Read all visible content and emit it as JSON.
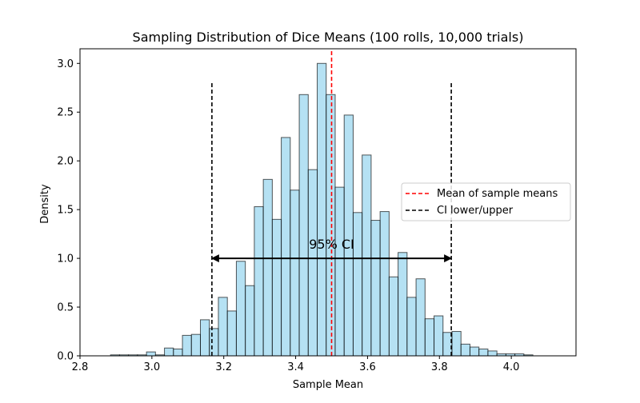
{
  "chart_data": {
    "type": "bar",
    "title": "Sampling Distribution of Dice Means (100 rolls, 10,000 trials)",
    "xlabel": "Sample Mean",
    "ylabel": "Density",
    "xlim": [
      2.8,
      4.18
    ],
    "ylim": [
      0,
      3.15
    ],
    "xticks": [
      "2.8",
      "3.0",
      "3.2",
      "3.4",
      "3.6",
      "3.8",
      "4.0"
    ],
    "yticks": [
      "0.0",
      "0.5",
      "1.0",
      "1.5",
      "2.0",
      "2.5",
      "3.0"
    ],
    "histogram": {
      "bin_start": 2.885,
      "bin_width": 0.025,
      "density": [
        0.01,
        0.01,
        0.01,
        0.01,
        0.04,
        0.01,
        0.08,
        0.07,
        0.21,
        0.22,
        0.37,
        0.28,
        0.6,
        0.46,
        0.97,
        0.72,
        1.53,
        1.81,
        1.4,
        2.24,
        1.7,
        2.68,
        1.91,
        3.0,
        2.68,
        1.73,
        2.47,
        1.47,
        2.06,
        1.39,
        1.48,
        0.81,
        1.06,
        0.6,
        0.79,
        0.38,
        0.41,
        0.24,
        0.25,
        0.12,
        0.09,
        0.07,
        0.05,
        0.02,
        0.02,
        0.02,
        0.01
      ],
      "fill": "#87ceeb",
      "edge": "#000000"
    },
    "mean_line": {
      "x": 3.5,
      "label": "Mean of sample means",
      "color": "#ff0000"
    },
    "ci_lines": {
      "lower": 3.167,
      "upper": 3.833,
      "label": "CI lower/upper",
      "color": "#000000"
    },
    "ci_annotation": {
      "text": "95% CI",
      "y": 1.0
    },
    "legend_position": "center-right"
  }
}
